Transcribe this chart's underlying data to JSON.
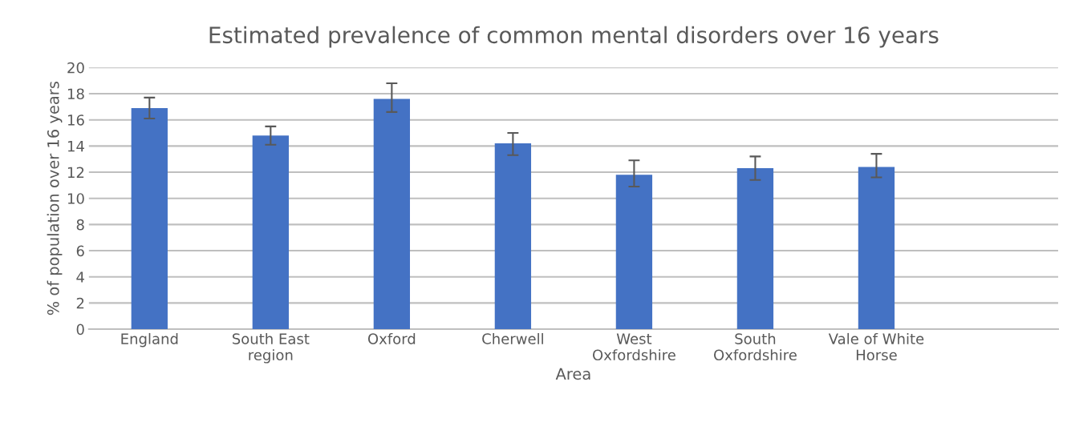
{
  "chart_data": {
    "type": "bar",
    "title": "Estimated prevalence of common mental disorders over 16 years",
    "xlabel": "Area",
    "ylabel": "% of population over 16 years",
    "categories": [
      "England",
      "South East\nregion",
      "Oxford",
      "Cherwell",
      "West\nOxfordshire",
      "South\nOxfordshire",
      "Vale of White\nHorse",
      null
    ],
    "values": [
      16.9,
      14.8,
      17.6,
      14.2,
      11.8,
      12.3,
      12.4,
      null
    ],
    "errors": [
      [
        16.1,
        17.7
      ],
      [
        14.1,
        15.5
      ],
      [
        16.6,
        18.8
      ],
      [
        13.3,
        15.0
      ],
      [
        10.9,
        12.9
      ],
      [
        11.4,
        13.2
      ],
      [
        11.6,
        13.4
      ],
      null
    ],
    "color": "#4472c4",
    "ylim": [
      0,
      20
    ],
    "yticks": [
      0,
      2,
      4,
      6,
      8,
      10,
      12,
      14,
      16,
      18,
      20
    ],
    "grid": "y",
    "legend": false
  }
}
